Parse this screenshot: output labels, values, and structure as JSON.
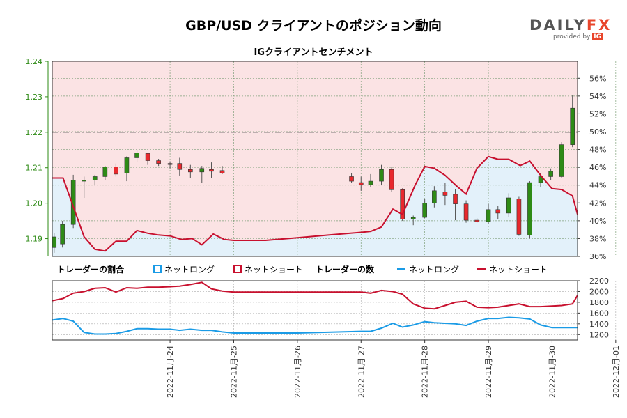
{
  "header": {
    "title": "GBP/USD クライアントのポジション動向",
    "subtitle": "IGクライアントセンチメント"
  },
  "logo": {
    "brand_left": "DAILY",
    "brand_right": "FX",
    "provided_by": "provided by",
    "ig": "IG"
  },
  "legend": {
    "pct_heading": "トレーダーの割合",
    "count_heading": "トレーダーの数",
    "net_long": "ネットロング",
    "net_short": "ネットショート"
  },
  "colors": {
    "long": "#1a9be6",
    "short": "#c8102e",
    "up_candle": "#2e8b16",
    "down_candle": "#e8282d",
    "short_zone": "#fbe3e4",
    "long_zone": "#e3f1fa",
    "price_axis": "#2e8b16"
  },
  "chart_data": {
    "type": "candlestick",
    "price_axis": {
      "ticks": [
        "1.19",
        "1.20",
        "1.21",
        "1.22",
        "1.23",
        "1.24"
      ],
      "ylim": [
        1.185,
        1.24
      ]
    },
    "pct_axis": {
      "ticks": [
        "36%",
        "38%",
        "40%",
        "42%",
        "44%",
        "46%",
        "48%",
        "50%",
        "52%",
        "54%",
        "56%"
      ],
      "ylim": [
        36,
        57.9
      ]
    },
    "count_axis": {
      "ticks": [
        "1200",
        "1400",
        "1600",
        "1800",
        "2000",
        "2200"
      ],
      "ylim": [
        1100,
        2200
      ]
    },
    "x_ticks": [
      "2022-11月-24",
      "2022-11月-25",
      "2022-11月-26",
      "2022-11月-27",
      "2022-11月-28",
      "2022-11月-29",
      "2022-11月-30",
      "2022-12月-01"
    ],
    "x_range": [
      -1.85,
      6.4
    ],
    "reference_line": 1.22,
    "candles": [
      {
        "t": -1.82,
        "o": 1.1875,
        "h": 1.1915,
        "l": 1.186,
        "c": 1.1905
      },
      {
        "t": -1.69,
        "o": 1.1885,
        "h": 1.195,
        "l": 1.1875,
        "c": 1.194
      },
      {
        "t": -1.52,
        "o": 1.194,
        "h": 1.208,
        "l": 1.193,
        "c": 1.2065
      },
      {
        "t": -1.35,
        "o": 1.2065,
        "h": 1.2075,
        "l": 1.2015,
        "c": 1.2065
      },
      {
        "t": -1.18,
        "o": 1.2065,
        "h": 1.208,
        "l": 1.205,
        "c": 1.2075
      },
      {
        "t": -1.02,
        "o": 1.2075,
        "h": 1.2105,
        "l": 1.2065,
        "c": 1.2102
      },
      {
        "t": -0.85,
        "o": 1.2102,
        "h": 1.2112,
        "l": 1.2075,
        "c": 1.2082
      },
      {
        "t": -0.68,
        "o": 1.2085,
        "h": 1.2132,
        "l": 1.2062,
        "c": 1.2128
      },
      {
        "t": -0.52,
        "o": 1.2128,
        "h": 1.215,
        "l": 1.2115,
        "c": 1.2142
      },
      {
        "t": -0.35,
        "o": 1.214,
        "h": 1.2142,
        "l": 1.2108,
        "c": 1.212
      },
      {
        "t": -0.18,
        "o": 1.212,
        "h": 1.2125,
        "l": 1.2105,
        "c": 1.2112
      },
      {
        "t": 0.0,
        "o": 1.2112,
        "h": 1.2118,
        "l": 1.2098,
        "c": 1.211
      },
      {
        "t": 0.15,
        "o": 1.2112,
        "h": 1.2128,
        "l": 1.2078,
        "c": 1.2095
      },
      {
        "t": 0.32,
        "o": 1.2095,
        "h": 1.2108,
        "l": 1.2072,
        "c": 1.2088
      },
      {
        "t": 0.5,
        "o": 1.2088,
        "h": 1.2105,
        "l": 1.2058,
        "c": 1.2098
      },
      {
        "t": 0.65,
        "o": 1.2095,
        "h": 1.2115,
        "l": 1.2072,
        "c": 1.209
      },
      {
        "t": 0.82,
        "o": 1.2092,
        "h": 1.2105,
        "l": 1.2082,
        "c": 1.2085
      },
      {
        "t": 2.85,
        "o": 1.2075,
        "h": 1.2085,
        "l": 1.2058,
        "c": 1.2062
      },
      {
        "t": 3.0,
        "o": 1.2058,
        "h": 1.2075,
        "l": 1.2035,
        "c": 1.2052
      },
      {
        "t": 3.15,
        "o": 1.2052,
        "h": 1.2082,
        "l": 1.2045,
        "c": 1.2062
      },
      {
        "t": 3.32,
        "o": 1.2062,
        "h": 1.2108,
        "l": 1.2052,
        "c": 1.2095
      },
      {
        "t": 3.48,
        "o": 1.2095,
        "h": 1.2102,
        "l": 1.2032,
        "c": 1.2038
      },
      {
        "t": 3.65,
        "o": 1.2038,
        "h": 1.2042,
        "l": 1.195,
        "c": 1.1955
      },
      {
        "t": 3.82,
        "o": 1.1955,
        "h": 1.1965,
        "l": 1.1938,
        "c": 1.196
      },
      {
        "t": 4.0,
        "o": 1.196,
        "h": 1.2012,
        "l": 1.1958,
        "c": 1.2
      },
      {
        "t": 4.15,
        "o": 1.2,
        "h": 1.2048,
        "l": 1.1988,
        "c": 1.2035
      },
      {
        "t": 4.32,
        "o": 1.2032,
        "h": 1.2058,
        "l": 1.1995,
        "c": 1.2022
      },
      {
        "t": 4.48,
        "o": 1.2025,
        "h": 1.204,
        "l": 1.1952,
        "c": 1.1998
      },
      {
        "t": 4.65,
        "o": 1.1998,
        "h": 1.2008,
        "l": 1.1945,
        "c": 1.1952
      },
      {
        "t": 4.82,
        "o": 1.1952,
        "h": 1.1958,
        "l": 1.1945,
        "c": 1.1948
      },
      {
        "t": 5.0,
        "o": 1.1948,
        "h": 1.1998,
        "l": 1.1942,
        "c": 1.1982
      },
      {
        "t": 5.15,
        "o": 1.1982,
        "h": 1.1992,
        "l": 1.1955,
        "c": 1.1972
      },
      {
        "t": 5.32,
        "o": 1.1972,
        "h": 1.2028,
        "l": 1.1962,
        "c": 1.2015
      },
      {
        "t": 5.48,
        "o": 1.2012,
        "h": 1.2018,
        "l": 1.1908,
        "c": 1.1912
      },
      {
        "t": 5.65,
        "o": 1.191,
        "h": 1.2062,
        "l": 1.19,
        "c": 1.2058
      },
      {
        "t": 5.82,
        "o": 1.2058,
        "h": 1.2085,
        "l": 1.2045,
        "c": 1.2075
      },
      {
        "t": 5.98,
        "o": 1.2075,
        "h": 1.2098,
        "l": 1.2065,
        "c": 1.209
      },
      {
        "t": 6.15,
        "o": 1.2075,
        "h": 1.2172,
        "l": 1.2072,
        "c": 1.2165
      },
      {
        "t": 6.32,
        "o": 1.2165,
        "h": 1.2305,
        "l": 1.2158,
        "c": 1.2268
      }
    ],
    "series": [
      {
        "name": "ネットショート",
        "pct": [
          [
            -1.85,
            44.8
          ],
          [
            -1.68,
            44.8
          ],
          [
            -1.35,
            38.2
          ],
          [
            -1.18,
            36.8
          ],
          [
            -1.02,
            36.6
          ],
          [
            -0.85,
            37.7
          ],
          [
            -0.68,
            37.7
          ],
          [
            -0.52,
            38.9
          ],
          [
            -0.35,
            38.6
          ],
          [
            -0.18,
            38.4
          ],
          [
            0.0,
            38.3
          ],
          [
            0.18,
            37.9
          ],
          [
            0.35,
            38.0
          ],
          [
            0.5,
            37.3
          ],
          [
            0.68,
            38.5
          ],
          [
            0.85,
            37.9
          ],
          [
            1.0,
            37.8
          ],
          [
            1.5,
            37.8
          ],
          [
            2.0,
            38.1
          ],
          [
            2.5,
            38.4
          ],
          [
            3.0,
            38.7
          ],
          [
            3.15,
            38.8
          ],
          [
            3.32,
            39.3
          ],
          [
            3.5,
            41.3
          ],
          [
            3.65,
            40.7
          ],
          [
            3.85,
            44.0
          ],
          [
            4.0,
            46.1
          ],
          [
            4.15,
            45.9
          ],
          [
            4.32,
            45.1
          ],
          [
            4.5,
            43.9
          ],
          [
            4.65,
            43.0
          ],
          [
            4.82,
            45.9
          ],
          [
            5.0,
            47.2
          ],
          [
            5.15,
            46.9
          ],
          [
            5.32,
            46.9
          ],
          [
            5.5,
            46.2
          ],
          [
            5.65,
            46.7
          ],
          [
            5.82,
            45.1
          ],
          [
            6.0,
            43.6
          ],
          [
            6.15,
            43.5
          ],
          [
            6.32,
            42.8
          ],
          [
            6.4,
            40.7
          ]
        ],
        "count": [
          [
            -1.85,
            1830
          ],
          [
            -1.68,
            1870
          ],
          [
            -1.52,
            1970
          ],
          [
            -1.35,
            2000
          ],
          [
            -1.18,
            2060
          ],
          [
            -1.02,
            2070
          ],
          [
            -0.85,
            1990
          ],
          [
            -0.68,
            2070
          ],
          [
            -0.52,
            2060
          ],
          [
            -0.35,
            2080
          ],
          [
            -0.18,
            2080
          ],
          [
            0.0,
            2090
          ],
          [
            0.15,
            2100
          ],
          [
            0.32,
            2130
          ],
          [
            0.5,
            2170
          ],
          [
            0.65,
            2050
          ],
          [
            0.82,
            2010
          ],
          [
            1.0,
            1990
          ],
          [
            3.0,
            1990
          ],
          [
            3.15,
            1970
          ],
          [
            3.32,
            2020
          ],
          [
            3.5,
            2000
          ],
          [
            3.65,
            1950
          ],
          [
            3.82,
            1770
          ],
          [
            4.0,
            1690
          ],
          [
            4.15,
            1680
          ],
          [
            4.32,
            1740
          ],
          [
            4.48,
            1800
          ],
          [
            4.65,
            1820
          ],
          [
            4.82,
            1710
          ],
          [
            5.0,
            1700
          ],
          [
            5.15,
            1710
          ],
          [
            5.32,
            1740
          ],
          [
            5.48,
            1770
          ],
          [
            5.65,
            1720
          ],
          [
            5.82,
            1720
          ],
          [
            6.0,
            1730
          ],
          [
            6.15,
            1740
          ],
          [
            6.32,
            1770
          ],
          [
            6.4,
            1930
          ]
        ]
      },
      {
        "name": "ネットロング",
        "count": [
          [
            -1.85,
            1470
          ],
          [
            -1.68,
            1500
          ],
          [
            -1.52,
            1450
          ],
          [
            -1.35,
            1240
          ],
          [
            -1.18,
            1210
          ],
          [
            -1.02,
            1210
          ],
          [
            -0.85,
            1220
          ],
          [
            -0.68,
            1260
          ],
          [
            -0.52,
            1310
          ],
          [
            -0.35,
            1310
          ],
          [
            -0.18,
            1300
          ],
          [
            0.0,
            1300
          ],
          [
            0.15,
            1280
          ],
          [
            0.32,
            1300
          ],
          [
            0.5,
            1280
          ],
          [
            0.65,
            1280
          ],
          [
            0.82,
            1250
          ],
          [
            1.0,
            1230
          ],
          [
            2.0,
            1230
          ],
          [
            3.0,
            1260
          ],
          [
            3.15,
            1260
          ],
          [
            3.32,
            1320
          ],
          [
            3.5,
            1410
          ],
          [
            3.65,
            1340
          ],
          [
            3.82,
            1380
          ],
          [
            4.0,
            1440
          ],
          [
            4.15,
            1420
          ],
          [
            4.32,
            1410
          ],
          [
            4.48,
            1400
          ],
          [
            4.65,
            1370
          ],
          [
            4.82,
            1450
          ],
          [
            5.0,
            1500
          ],
          [
            5.15,
            1500
          ],
          [
            5.32,
            1520
          ],
          [
            5.48,
            1510
          ],
          [
            5.65,
            1490
          ],
          [
            5.82,
            1380
          ],
          [
            6.0,
            1330
          ],
          [
            6.15,
            1330
          ],
          [
            6.4,
            1330
          ]
        ]
      }
    ]
  }
}
